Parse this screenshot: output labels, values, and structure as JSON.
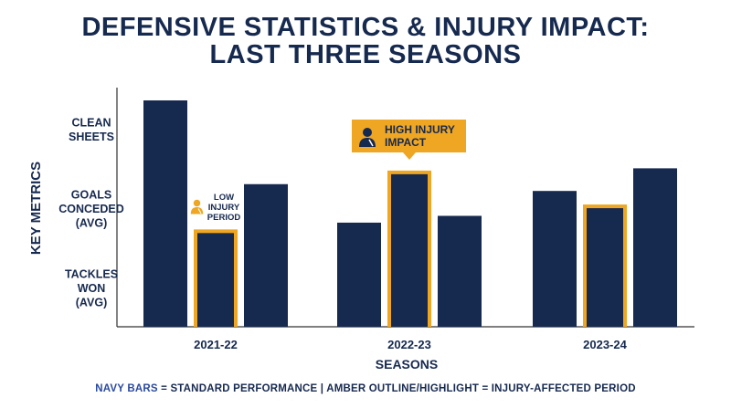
{
  "title_line1": "DEFENSIVE STATISTICS & INJURY IMPACT:",
  "title_line2": "LAST THREE SEASONS",
  "footer": {
    "navy_key": "NAVY BARS",
    "navy_text": " = STANDARD PERFORMANCE",
    "separator": " | ",
    "amber_key": "AMBER OUTLINE/HIGHLIGHT",
    "amber_text": " = INJURY-AFFECTED PERIOD"
  },
  "colors": {
    "navy": "#16294f",
    "amber": "#efa622",
    "axis": "#333333"
  },
  "chart_data": {
    "type": "bar",
    "xlabel": "SEASONS",
    "ylabel": "KEY METRICS",
    "y_categories": [
      [
        "CLEAN",
        "SHEETS"
      ],
      [
        "GOALS",
        "CONCEDED",
        "(AVG)"
      ],
      [
        "TACKLES",
        "WON",
        "(AVG)"
      ]
    ],
    "ylim": [
      0,
      100
    ],
    "grid": false,
    "legend": "bottom",
    "seasons": [
      {
        "label": "2021-22",
        "values": [
          100,
          43,
          63
        ],
        "injury_index": 1
      },
      {
        "label": "2022-23",
        "values": [
          46,
          69,
          49
        ],
        "injury_index": 1
      },
      {
        "label": "2023-24",
        "values": [
          60,
          54,
          70
        ],
        "injury_index": 1
      }
    ],
    "annotations": [
      {
        "season": 0,
        "lines": [
          "LOW",
          "INJURY",
          "PERIOD"
        ],
        "style": "small"
      },
      {
        "season": 1,
        "lines": [
          "HIGH INJURY",
          "IMPACT"
        ],
        "style": "callout"
      }
    ]
  }
}
